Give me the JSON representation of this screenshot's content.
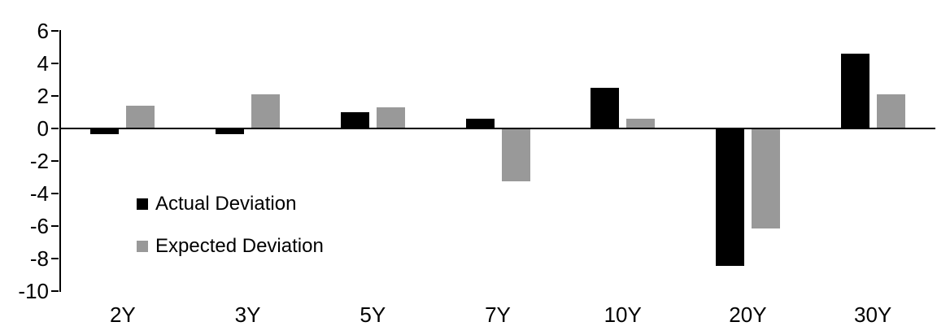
{
  "chart_data": {
    "type": "bar",
    "categories": [
      "2Y",
      "3Y",
      "5Y",
      "7Y",
      "10Y",
      "20Y",
      "30Y"
    ],
    "series": [
      {
        "name": "Actual Deviation",
        "color": "#000000",
        "values": [
          -0.3,
          -0.3,
          1.0,
          0.6,
          2.5,
          -8.4,
          4.6
        ]
      },
      {
        "name": "Expected Deviation",
        "color": "#999999",
        "values": [
          1.4,
          2.1,
          1.3,
          -3.2,
          0.6,
          -6.1,
          2.1
        ]
      }
    ],
    "yticks": [
      6,
      4,
      2,
      0,
      -2,
      -4,
      -6,
      -8,
      -10
    ],
    "ylim": [
      -10,
      6
    ],
    "grid": false,
    "legend_position": "inside-left",
    "axis_color": "#000000"
  }
}
